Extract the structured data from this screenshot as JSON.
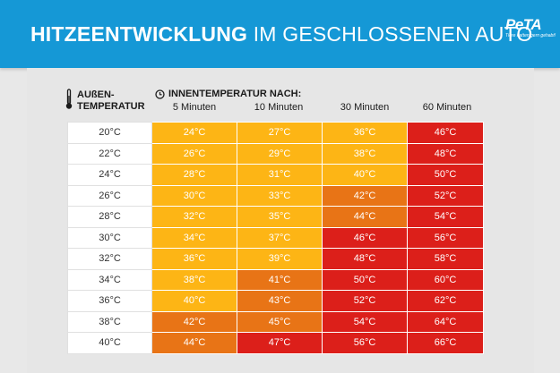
{
  "header": {
    "title_bold": "HITZEENTWICKLUNG",
    "title_rest": " IM GESCHLOSSENEN AUTO",
    "logo_word": "PeTA",
    "logo_tagline": "Tiere hatten gern gehabt!",
    "background": "#1598d6"
  },
  "columns": {
    "outside_label_1": "AUßEN-",
    "outside_label_2": "TEMPERATUR",
    "inside_label": "INNENTEMPERATUR NACH:",
    "times": [
      "5 Minuten",
      "10 Minuten",
      "30 Minuten",
      "60 Minuten"
    ]
  },
  "colors": {
    "yellow": "#fdb515",
    "orange": "#e87416",
    "red": "#dc1f1a"
  },
  "rows": [
    {
      "outside": "20°C",
      "cells": [
        {
          "t": "24°C",
          "c": "yellow"
        },
        {
          "t": "27°C",
          "c": "yellow"
        },
        {
          "t": "36°C",
          "c": "yellow"
        },
        {
          "t": "46°C",
          "c": "red"
        }
      ]
    },
    {
      "outside": "22°C",
      "cells": [
        {
          "t": "26°C",
          "c": "yellow"
        },
        {
          "t": "29°C",
          "c": "yellow"
        },
        {
          "t": "38°C",
          "c": "yellow"
        },
        {
          "t": "48°C",
          "c": "red"
        }
      ]
    },
    {
      "outside": "24°C",
      "cells": [
        {
          "t": "28°C",
          "c": "yellow"
        },
        {
          "t": "31°C",
          "c": "yellow"
        },
        {
          "t": "40°C",
          "c": "yellow"
        },
        {
          "t": "50°C",
          "c": "red"
        }
      ]
    },
    {
      "outside": "26°C",
      "cells": [
        {
          "t": "30°C",
          "c": "yellow"
        },
        {
          "t": "33°C",
          "c": "yellow"
        },
        {
          "t": "42°C",
          "c": "orange"
        },
        {
          "t": "52°C",
          "c": "red"
        }
      ]
    },
    {
      "outside": "28°C",
      "cells": [
        {
          "t": "32°C",
          "c": "yellow"
        },
        {
          "t": "35°C",
          "c": "yellow"
        },
        {
          "t": "44°C",
          "c": "orange"
        },
        {
          "t": "54°C",
          "c": "red"
        }
      ]
    },
    {
      "outside": "30°C",
      "cells": [
        {
          "t": "34°C",
          "c": "yellow"
        },
        {
          "t": "37°C",
          "c": "yellow"
        },
        {
          "t": "46°C",
          "c": "red"
        },
        {
          "t": "56°C",
          "c": "red"
        }
      ]
    },
    {
      "outside": "32°C",
      "cells": [
        {
          "t": "36°C",
          "c": "yellow"
        },
        {
          "t": "39°C",
          "c": "yellow"
        },
        {
          "t": "48°C",
          "c": "red"
        },
        {
          "t": "58°C",
          "c": "red"
        }
      ]
    },
    {
      "outside": "34°C",
      "cells": [
        {
          "t": "38°C",
          "c": "yellow"
        },
        {
          "t": "41°C",
          "c": "orange"
        },
        {
          "t": "50°C",
          "c": "red"
        },
        {
          "t": "60°C",
          "c": "red"
        }
      ]
    },
    {
      "outside": "36°C",
      "cells": [
        {
          "t": "40°C",
          "c": "yellow"
        },
        {
          "t": "43°C",
          "c": "orange"
        },
        {
          "t": "52°C",
          "c": "red"
        },
        {
          "t": "62°C",
          "c": "red"
        }
      ]
    },
    {
      "outside": "38°C",
      "cells": [
        {
          "t": "42°C",
          "c": "orange"
        },
        {
          "t": "45°C",
          "c": "orange"
        },
        {
          "t": "54°C",
          "c": "red"
        },
        {
          "t": "64°C",
          "c": "red"
        }
      ]
    },
    {
      "outside": "40°C",
      "cells": [
        {
          "t": "44°C",
          "c": "orange"
        },
        {
          "t": "47°C",
          "c": "red"
        },
        {
          "t": "56°C",
          "c": "red"
        },
        {
          "t": "66°C",
          "c": "red"
        }
      ]
    }
  ]
}
